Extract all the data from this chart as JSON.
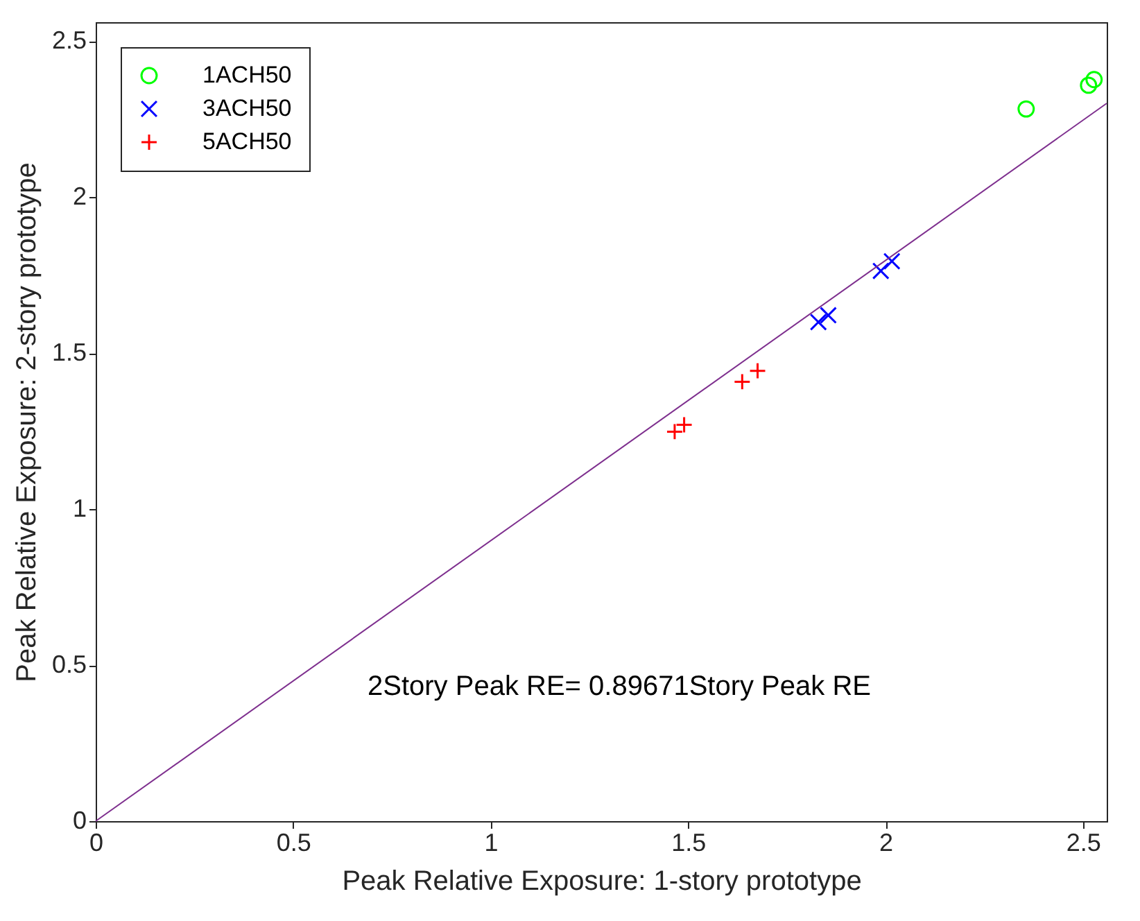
{
  "chart_data": {
    "type": "scatter",
    "xlabel": "Peak Relative Exposure: 1-story prototype",
    "ylabel": "Peak Relative Exposure: 2-story prototype",
    "xlim": [
      0,
      2.56
    ],
    "ylim": [
      0,
      2.56
    ],
    "xticks": [
      0,
      0.5,
      1,
      1.5,
      2,
      2.5
    ],
    "yticks": [
      0,
      0.5,
      1,
      1.5,
      2,
      2.5
    ],
    "grid": false,
    "legend": "top left",
    "annotations": [
      "2Story Peak RE= 0.89671Story Peak RE"
    ],
    "series": [
      {
        "name": "1ACH50",
        "color": "#00ff00",
        "marker": "circle",
        "x": [
          2.356,
          2.514,
          2.528
        ],
        "values": [
          2.282,
          2.358,
          2.376
        ]
      },
      {
        "name": "3ACH50",
        "color": "#0000ff",
        "marker": "cross",
        "x": [
          1.83,
          1.855,
          1.988,
          2.016
        ],
        "values": [
          1.599,
          1.621,
          1.763,
          1.794
        ]
      },
      {
        "name": "5ACH50",
        "color": "#ff0000",
        "marker": "plus",
        "x": [
          1.466,
          1.49,
          1.637,
          1.676
        ],
        "values": [
          1.248,
          1.27,
          1.408,
          1.443
        ]
      },
      {
        "type": "line",
        "color": "#7e2f8e",
        "marker": "none",
        "x": [
          0,
          2.56
        ],
        "values": [
          0,
          2.3
        ]
      }
    ]
  }
}
